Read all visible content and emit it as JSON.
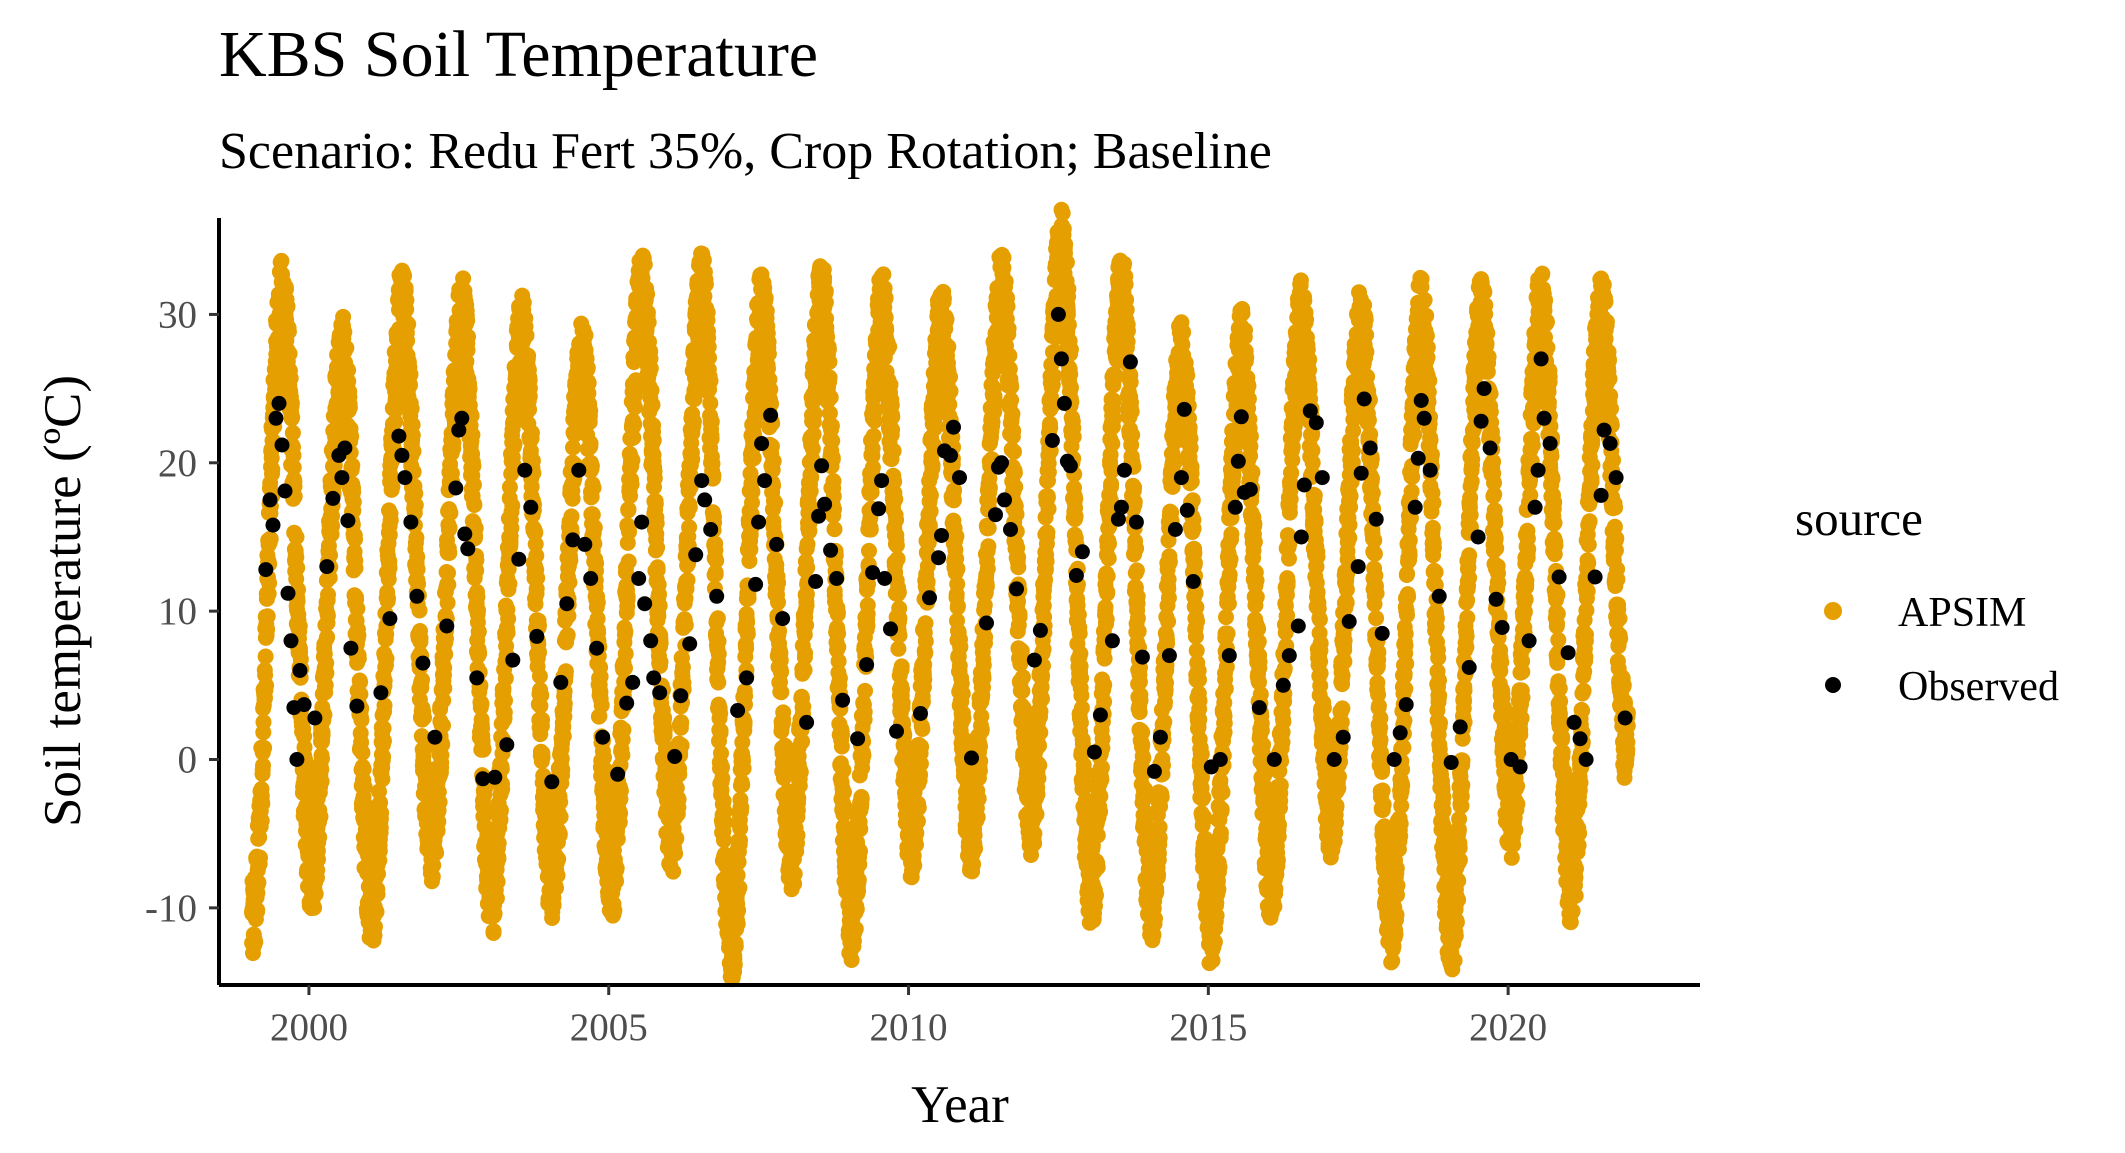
{
  "chart_data": {
    "type": "scatter",
    "title": "KBS Soil Temperature",
    "subtitle": "Scenario: Redu Fert 35%, Crop Rotation; Baseline",
    "xlabel": "Year",
    "ylabel": "Soil temperature (ºC)",
    "xlim": [
      1998.5,
      2023.2
    ],
    "ylim": [
      -15.2,
      36.5
    ],
    "x_ticks": [
      2000,
      2005,
      2010,
      2015,
      2020
    ],
    "x_tick_labels": [
      "2000",
      "2005",
      "2010",
      "2015",
      "2020"
    ],
    "y_ticks": [
      -10,
      0,
      10,
      20,
      30
    ],
    "y_tick_labels": [
      "-10",
      "0",
      "10",
      "20",
      "30"
    ],
    "grid": false,
    "legend": {
      "title": "source",
      "position": "right"
    },
    "series": [
      {
        "name": "APSIM",
        "color": "#E69F00",
        "note_seasonal": true,
        "seasonal_peaks": [
          [
            1999.55,
            30.8
          ],
          [
            2000.55,
            27.0
          ],
          [
            2001.55,
            30.3
          ],
          [
            2002.55,
            29.7
          ],
          [
            2003.55,
            28.5
          ],
          [
            2004.55,
            27.0
          ],
          [
            2005.55,
            31.3
          ],
          [
            2006.55,
            31.3
          ],
          [
            2007.55,
            30.0
          ],
          [
            2008.55,
            30.6
          ],
          [
            2009.55,
            30.2
          ],
          [
            2010.55,
            29.1
          ],
          [
            2011.55,
            31.3
          ],
          [
            2012.55,
            34.3
          ],
          [
            2013.55,
            31.3
          ],
          [
            2014.55,
            26.8
          ],
          [
            2015.55,
            27.5
          ],
          [
            2016.55,
            29.5
          ],
          [
            2017.55,
            29.0
          ],
          [
            2018.55,
            29.8
          ],
          [
            2019.55,
            29.5
          ],
          [
            2020.55,
            30.2
          ],
          [
            2021.55,
            29.8
          ]
        ],
        "seasonal_troughs": [
          [
            1999.05,
            -11.2
          ],
          [
            2000.05,
            -7.5
          ],
          [
            2001.05,
            -9.7
          ],
          [
            2002.05,
            -5.5
          ],
          [
            2003.05,
            -9.0
          ],
          [
            2004.05,
            -8.0
          ],
          [
            2005.05,
            -8.0
          ],
          [
            2006.05,
            -5.0
          ],
          [
            2007.05,
            -12.3
          ],
          [
            2008.05,
            -6.0
          ],
          [
            2009.05,
            -10.8
          ],
          [
            2010.05,
            -5.0
          ],
          [
            2011.05,
            -4.8
          ],
          [
            2012.05,
            -3.5
          ],
          [
            2013.05,
            -8.5
          ],
          [
            2014.05,
            -9.3
          ],
          [
            2015.05,
            -11.2
          ],
          [
            2016.05,
            -8.2
          ],
          [
            2017.05,
            -3.8
          ],
          [
            2018.05,
            -11.0
          ],
          [
            2019.05,
            -12.0
          ],
          [
            2020.05,
            -3.8
          ],
          [
            2021.05,
            -8.5
          ],
          [
            2022.0,
            0.3
          ]
        ]
      },
      {
        "name": "Observed",
        "color": "#000000",
        "x": [
          1999.28,
          1999.35,
          1999.4,
          1999.45,
          1999.5,
          1999.55,
          1999.6,
          1999.65,
          1999.7,
          1999.75,
          1999.8,
          1999.85,
          1999.92,
          2000.1,
          2000.3,
          2000.4,
          2000.5,
          2000.55,
          2000.6,
          2000.65,
          2000.7,
          2000.8,
          2001.2,
          2001.35,
          2001.5,
          2001.55,
          2001.6,
          2001.7,
          2001.8,
          2001.9,
          2002.1,
          2002.3,
          2002.45,
          2002.5,
          2002.55,
          2002.6,
          2002.65,
          2002.8,
          2002.9,
          2003.1,
          2003.3,
          2003.4,
          2003.5,
          2003.6,
          2003.7,
          2003.8,
          2004.05,
          2004.2,
          2004.3,
          2004.4,
          2004.5,
          2004.6,
          2004.7,
          2004.8,
          2004.9,
          2005.15,
          2005.3,
          2005.4,
          2005.5,
          2005.55,
          2005.6,
          2005.7,
          2005.75,
          2005.85,
          2006.1,
          2006.2,
          2006.35,
          2006.45,
          2006.55,
          2006.6,
          2006.7,
          2006.8,
          2007.15,
          2007.3,
          2007.45,
          2007.5,
          2007.55,
          2007.6,
          2007.7,
          2007.8,
          2007.9,
          2008.3,
          2008.45,
          2008.5,
          2008.55,
          2008.6,
          2008.7,
          2008.8,
          2008.9,
          2009.15,
          2009.3,
          2009.4,
          2009.5,
          2009.55,
          2009.6,
          2009.7,
          2009.8,
          2010.2,
          2010.35,
          2010.5,
          2010.55,
          2010.6,
          2010.7,
          2010.75,
          2010.85,
          2011.05,
          2011.3,
          2011.45,
          2011.5,
          2011.55,
          2011.6,
          2011.7,
          2011.8,
          2012.1,
          2012.2,
          2012.4,
          2012.5,
          2012.55,
          2012.6,
          2012.65,
          2012.7,
          2012.8,
          2012.9,
          2013.1,
          2013.2,
          2013.4,
          2013.5,
          2013.55,
          2013.6,
          2013.7,
          2013.8,
          2013.9,
          2014.1,
          2014.2,
          2014.35,
          2014.45,
          2014.55,
          2014.6,
          2014.65,
          2014.75,
          2015.05,
          2015.2,
          2015.35,
          2015.45,
          2015.5,
          2015.55,
          2015.6,
          2015.7,
          2015.85,
          2016.1,
          2016.25,
          2016.35,
          2016.5,
          2016.55,
          2016.6,
          2016.7,
          2016.8,
          2016.9,
          2017.1,
          2017.25,
          2017.35,
          2017.5,
          2017.55,
          2017.6,
          2017.7,
          2017.8,
          2017.9,
          2018.1,
          2018.2,
          2018.3,
          2018.45,
          2018.5,
          2018.55,
          2018.6,
          2018.7,
          2018.85,
          2019.05,
          2019.2,
          2019.35,
          2019.5,
          2019.55,
          2019.6,
          2019.7,
          2019.8,
          2019.9,
          2020.05,
          2020.2,
          2020.35,
          2020.45,
          2020.5,
          2020.55,
          2020.6,
          2020.7,
          2020.85,
          2021.0,
          2021.1,
          2021.2,
          2021.3,
          2021.45,
          2021.55,
          2021.6,
          2021.7,
          2021.8,
          2021.95
        ],
        "y": [
          12.8,
          17.5,
          15.8,
          23.0,
          24.0,
          21.2,
          18.1,
          11.2,
          8.0,
          3.5,
          0.0,
          6.0,
          3.7,
          2.8,
          13.0,
          17.6,
          20.5,
          19.0,
          21.0,
          16.1,
          7.5,
          3.6,
          4.5,
          9.5,
          21.8,
          20.5,
          19.0,
          16.0,
          11.0,
          6.5,
          1.5,
          9.0,
          18.3,
          22.2,
          23.0,
          15.2,
          14.2,
          5.5,
          -1.3,
          -1.2,
          1.0,
          6.7,
          13.5,
          19.5,
          17.0,
          8.3,
          -1.5,
          5.2,
          10.5,
          14.8,
          19.5,
          14.5,
          12.2,
          7.5,
          1.5,
          -1.0,
          3.8,
          5.2,
          12.2,
          16.0,
          10.5,
          8.0,
          5.5,
          4.5,
          0.2,
          4.3,
          7.8,
          13.8,
          18.8,
          17.5,
          15.5,
          11.0,
          3.3,
          5.5,
          11.8,
          16.0,
          21.3,
          18.8,
          23.2,
          14.5,
          9.5,
          2.5,
          12.0,
          16.4,
          19.8,
          17.2,
          14.1,
          12.2,
          4.0,
          1.4,
          6.4,
          12.6,
          16.9,
          18.8,
          12.2,
          8.8,
          1.9,
          3.1,
          10.9,
          13.6,
          15.1,
          20.8,
          20.5,
          22.4,
          19.0,
          0.1,
          9.2,
          16.5,
          19.7,
          20.0,
          17.5,
          15.5,
          11.5,
          6.7,
          8.7,
          21.5,
          30.0,
          27.0,
          24.0,
          20.1,
          19.8,
          12.4,
          14.0,
          0.5,
          3.0,
          8.0,
          16.2,
          17.0,
          19.5,
          26.8,
          16.0,
          6.9,
          -0.8,
          1.5,
          7.0,
          15.5,
          19.0,
          23.6,
          16.8,
          12.0,
          -0.5,
          0.0,
          7.0,
          17.0,
          20.1,
          23.1,
          18.0,
          18.2,
          3.5,
          0.0,
          5.0,
          7.0,
          9.0,
          15.0,
          18.5,
          23.5,
          22.7,
          19.0,
          0.0,
          1.5,
          9.3,
          13.0,
          19.3,
          24.3,
          21.0,
          16.2,
          8.5,
          0.0,
          1.8,
          3.7,
          17.0,
          20.3,
          24.2,
          23.0,
          19.5,
          11.0,
          -0.2,
          2.2,
          6.2,
          15.0,
          22.8,
          25.0,
          21.0,
          10.8,
          8.9,
          0.0,
          -0.5,
          8.0,
          17.0,
          19.5,
          27.0,
          23.0,
          21.3,
          12.3,
          7.2,
          2.5,
          1.4,
          0.0,
          12.3,
          17.8,
          22.2,
          21.3,
          19.0,
          2.8
        ]
      }
    ]
  }
}
